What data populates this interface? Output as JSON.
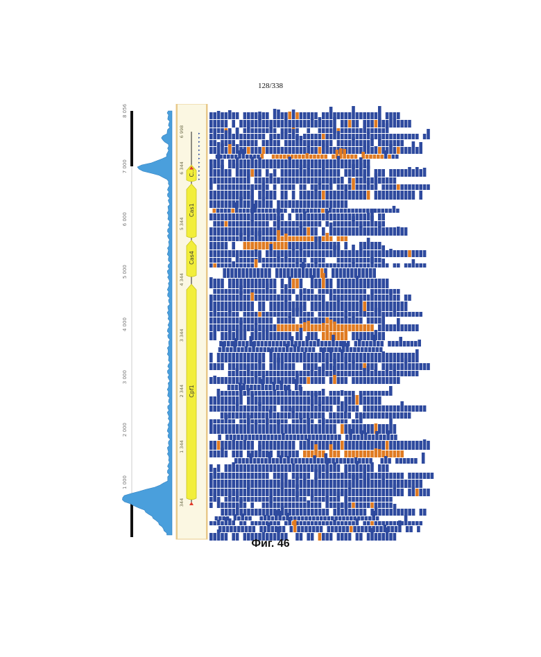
{
  "page": {
    "number": "128/338"
  },
  "caption": "Фиг. 46",
  "coverage_axis": {
    "ticks": [
      "1 000",
      "2 000",
      "3 000",
      "4 000",
      "5 000",
      "6 000",
      "7 000",
      "8 056"
    ],
    "tick_values": [
      1000,
      2000,
      3000,
      4000,
      5000,
      6000,
      7000,
      8056
    ],
    "max": 8056
  },
  "sequence_ruler": {
    "ticks": [
      "344",
      "1 344",
      "2 344",
      "3 344",
      "4 344",
      "5 344",
      "6 344",
      "6 998"
    ],
    "tick_values": [
      344,
      1344,
      2344,
      3344,
      4344,
      5344,
      6344,
      6998
    ]
  },
  "genes": [
    {
      "label": "Cpf1",
      "start": 420,
      "end": 4260
    },
    {
      "label": "Cas4",
      "start": 4420,
      "end": 5050
    },
    {
      "label": "Cas1",
      "start": 5120,
      "end": 6060
    },
    {
      "label": "C...",
      "start": 6130,
      "end": 6400
    }
  ],
  "colors": {
    "read": "#2e4a9e",
    "mismatch": "#e07b22",
    "gene": "#f2ee3a",
    "coverage": "#4a9fdc",
    "panel": "#fbf7e2",
    "panel_border": "#e8c98a",
    "array_marker": "#e23b2b"
  }
}
